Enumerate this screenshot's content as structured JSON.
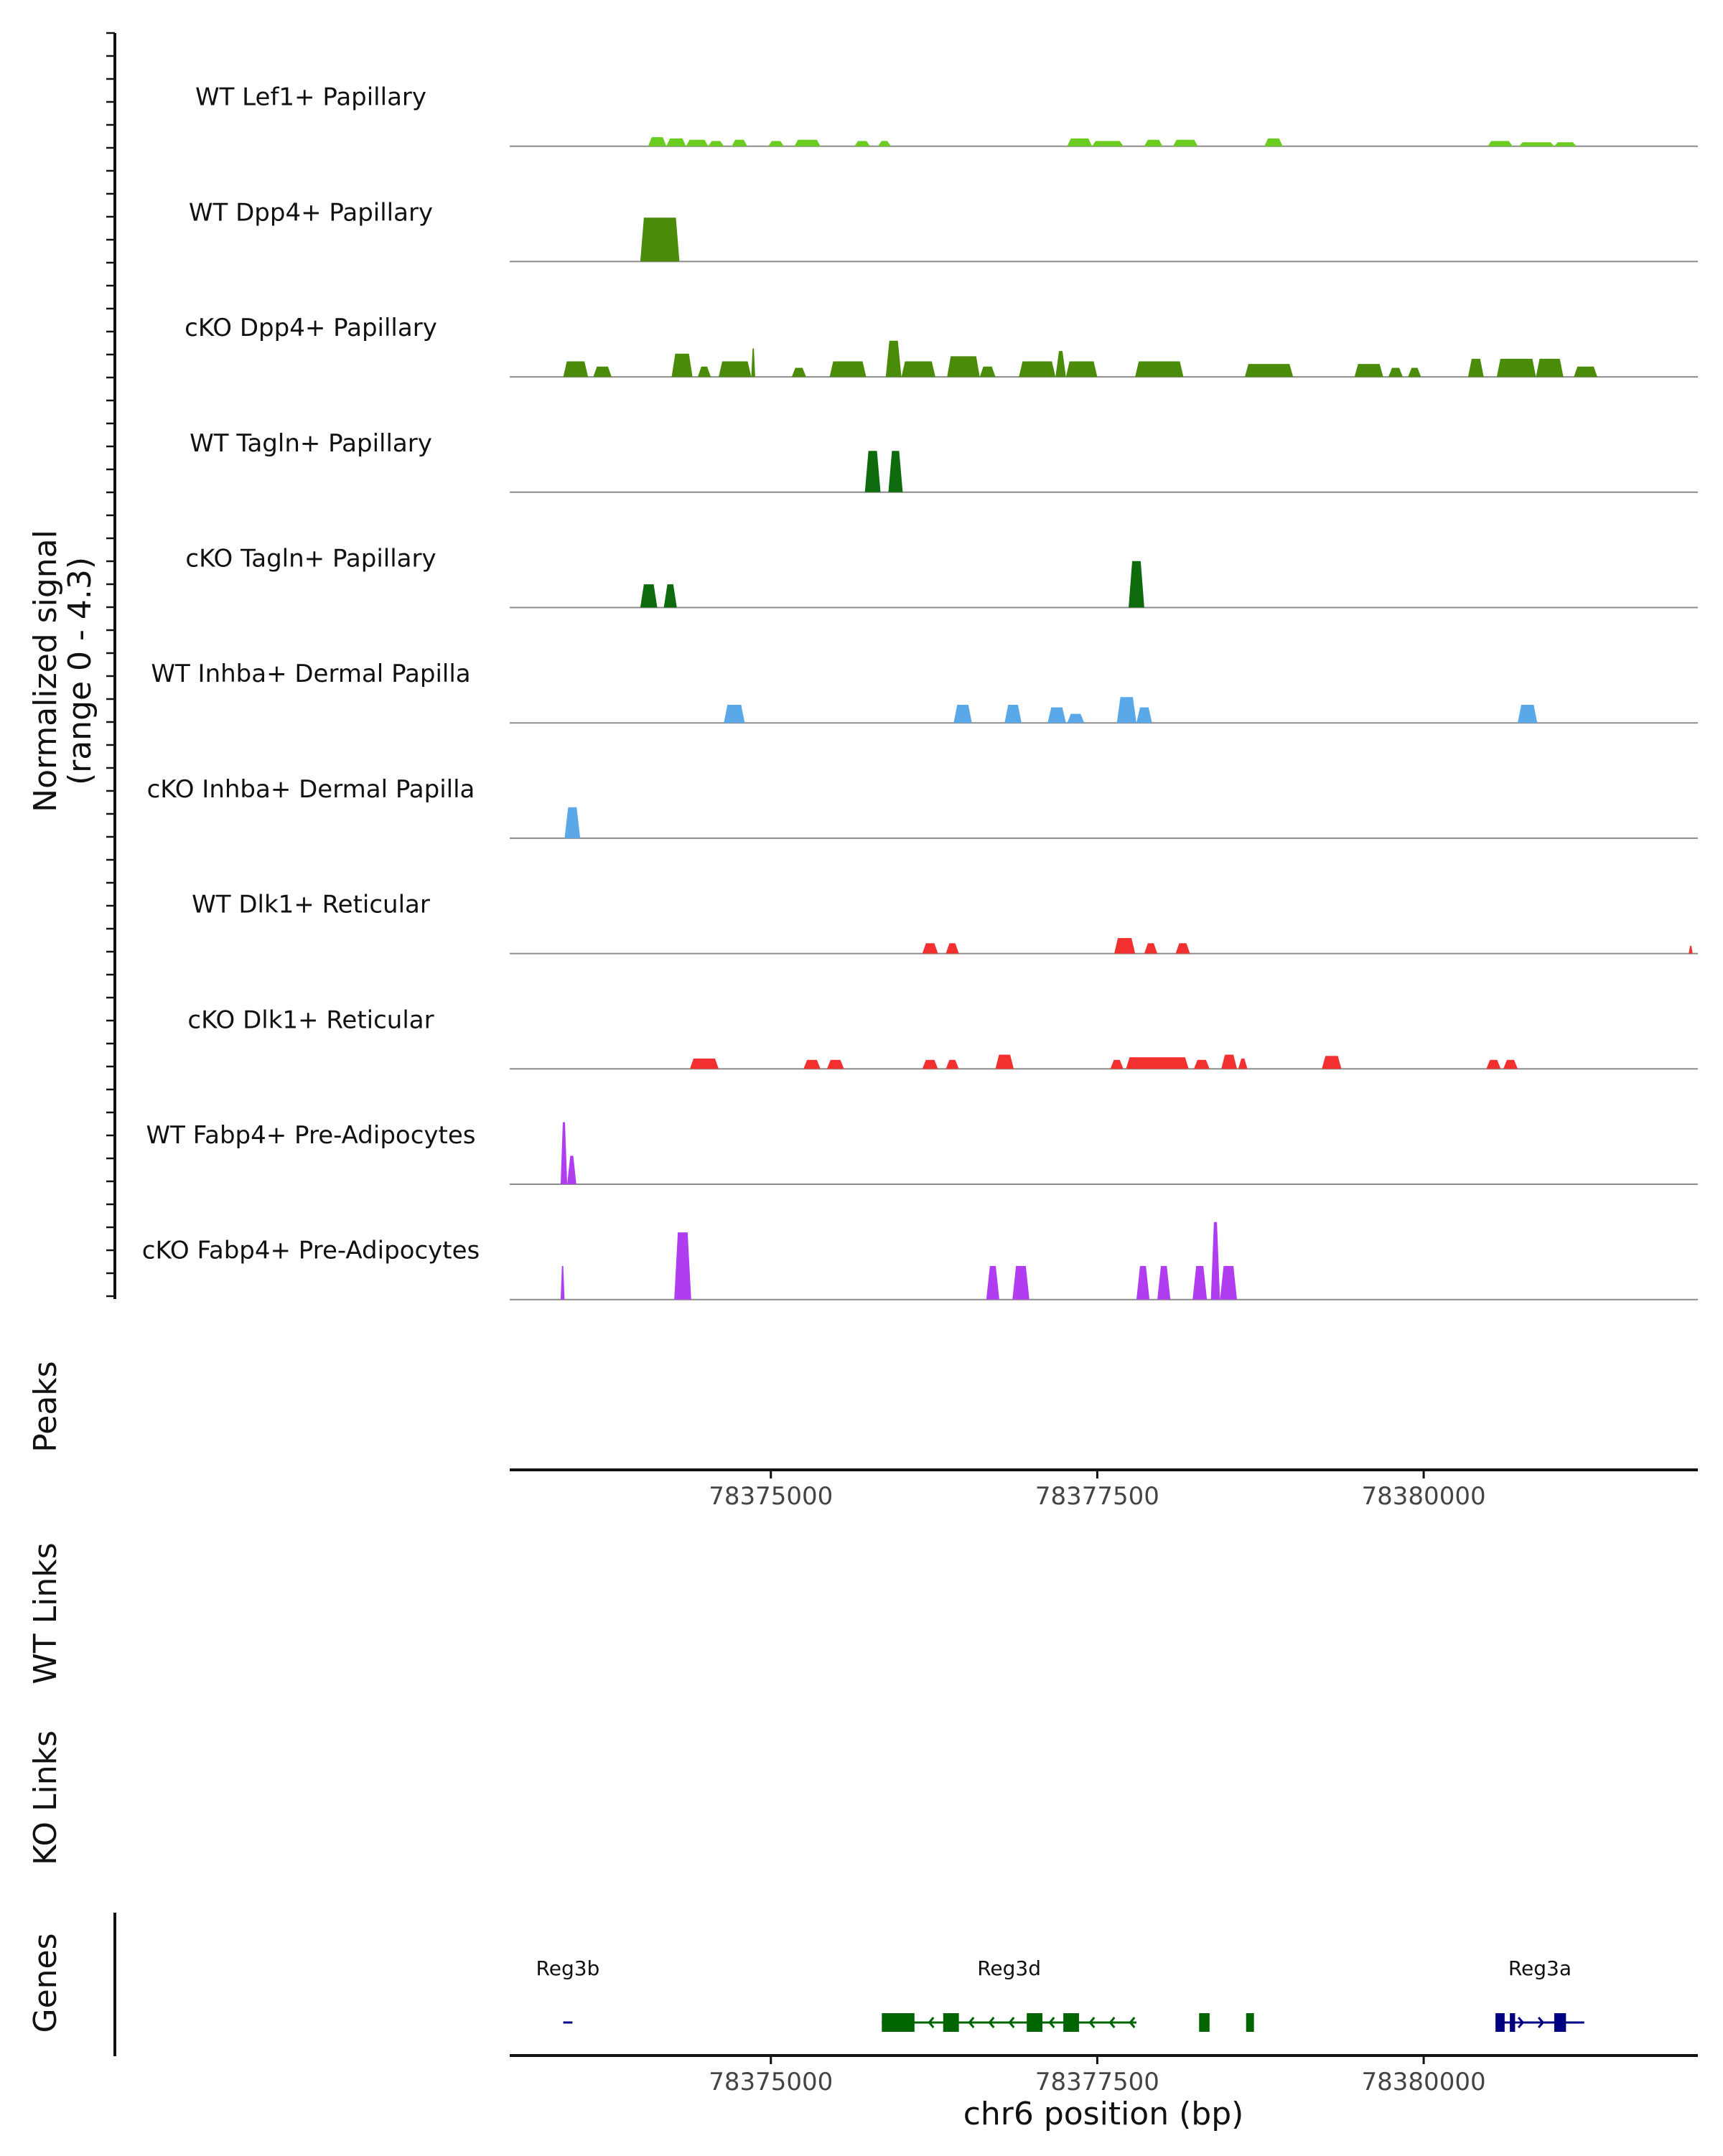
{
  "chart_data": {
    "type": "area",
    "chromosome": "chr6",
    "xlim": [
      78373000,
      78382100
    ],
    "coverage": {
      "ylabel": "Normalized signal",
      "ylabel_range": "(range 0 - 4.3)",
      "ylim": [
        0,
        4.3
      ],
      "tracks": [
        {
          "name": "WT Lef1+ Papillary",
          "color": "#6acc1f",
          "peaks": [
            [
              78374060,
              78374200,
              0.35
            ],
            [
              78374200,
              78374350,
              0.3
            ],
            [
              78374350,
              78374520,
              0.25
            ],
            [
              78374520,
              78374640,
              0.2
            ],
            [
              78374700,
              78374820,
              0.25
            ],
            [
              78374980,
              78375100,
              0.2
            ],
            [
              78375180,
              78375380,
              0.25
            ],
            [
              78375640,
              78375760,
              0.2
            ],
            [
              78375820,
              78375920,
              0.2
            ],
            [
              78377270,
              78377460,
              0.3
            ],
            [
              78377460,
              78377700,
              0.2
            ],
            [
              78377860,
              78378000,
              0.25
            ],
            [
              78378080,
              78378270,
              0.25
            ],
            [
              78378780,
              78378920,
              0.3
            ],
            [
              78380490,
              78380680,
              0.2
            ],
            [
              78380730,
              78381000,
              0.15
            ],
            [
              78381000,
              78381170,
              0.15
            ]
          ]
        },
        {
          "name": "WT Dpp4+ Papillary",
          "color": "#4a8c0a",
          "peaks": [
            [
              78374000,
              78374300,
              1.7
            ]
          ]
        },
        {
          "name": "cKO Dpp4+ Papillary",
          "color": "#4a8c0a",
          "peaks": [
            [
              78373410,
              78373600,
              0.6
            ],
            [
              78373640,
              78373780,
              0.4
            ],
            [
              78374240,
              78374400,
              0.9
            ],
            [
              78374440,
              78374540,
              0.4
            ],
            [
              78374600,
              78374850,
              0.6
            ],
            [
              78374850,
              78374880,
              1.1
            ],
            [
              78375160,
              78375270,
              0.35
            ],
            [
              78375450,
              78375730,
              0.6
            ],
            [
              78375880,
              78376000,
              1.4
            ],
            [
              78376000,
              78376260,
              0.6
            ],
            [
              78376350,
              78376600,
              0.8
            ],
            [
              78376600,
              78376720,
              0.4
            ],
            [
              78376900,
              78377180,
              0.6
            ],
            [
              78377180,
              78377260,
              1.0
            ],
            [
              78377260,
              78377500,
              0.6
            ],
            [
              78377790,
              78378160,
              0.6
            ],
            [
              78378630,
              78379000,
              0.5
            ],
            [
              78379470,
              78379690,
              0.5
            ],
            [
              78379730,
              78379840,
              0.35
            ],
            [
              78379880,
              78379980,
              0.35
            ],
            [
              78380340,
              78380460,
              0.7
            ],
            [
              78380560,
              78380860,
              0.7
            ],
            [
              78380860,
              78381070,
              0.7
            ],
            [
              78381150,
              78381330,
              0.4
            ]
          ]
        },
        {
          "name": "WT Tagln+ Papillary",
          "color": "#0d6b0d",
          "peaks": [
            [
              78375720,
              78375840,
              1.6
            ],
            [
              78375900,
              78376010,
              1.6
            ]
          ]
        },
        {
          "name": "cKO Tagln+ Papillary",
          "color": "#0d6b0d",
          "peaks": [
            [
              78374000,
              78374130,
              0.9
            ],
            [
              78374180,
              78374280,
              0.9
            ],
            [
              78377740,
              78377860,
              1.8
            ]
          ]
        },
        {
          "name": "WT Inhba+ Dermal Papilla",
          "color": "#5aa8e8",
          "peaks": [
            [
              78374640,
              78374800,
              0.7
            ],
            [
              78376400,
              78376540,
              0.7
            ],
            [
              78376790,
              78376920,
              0.7
            ],
            [
              78377120,
              78377260,
              0.6
            ],
            [
              78377270,
              78377400,
              0.35
            ],
            [
              78377650,
              78377800,
              1.0
            ],
            [
              78377800,
              78377920,
              0.6
            ],
            [
              78380720,
              78380870,
              0.7
            ]
          ]
        },
        {
          "name": "cKO Inhba+ Dermal Papilla",
          "color": "#5aa8e8",
          "peaks": [
            [
              78373420,
              78373540,
              1.2
            ]
          ]
        },
        {
          "name": "WT Dlk1+ Reticular",
          "color": "#f23030",
          "peaks": [
            [
              78376160,
              78376280,
              0.4
            ],
            [
              78376340,
              78376440,
              0.4
            ],
            [
              78377630,
              78377790,
              0.6
            ],
            [
              78377860,
              78377960,
              0.4
            ],
            [
              78378100,
              78378210,
              0.4
            ],
            [
              78382030,
              78382060,
              0.3
            ]
          ]
        },
        {
          "name": "cKO Dlk1+ Reticular",
          "color": "#f23030",
          "peaks": [
            [
              78374380,
              78374600,
              0.4
            ],
            [
              78375250,
              78375380,
              0.35
            ],
            [
              78375430,
              78375560,
              0.35
            ],
            [
              78376160,
              78376280,
              0.35
            ],
            [
              78376340,
              78376440,
              0.35
            ],
            [
              78376720,
              78376860,
              0.55
            ],
            [
              78377600,
              78377700,
              0.35
            ],
            [
              78377720,
              78378200,
              0.45
            ],
            [
              78378240,
              78378360,
              0.35
            ],
            [
              78378450,
              78378570,
              0.55
            ],
            [
              78378580,
              78378650,
              0.4
            ],
            [
              78379220,
              78379370,
              0.5
            ],
            [
              78380480,
              78380590,
              0.35
            ],
            [
              78380610,
              78380720,
              0.35
            ]
          ]
        },
        {
          "name": "WT Fabp4+ Pre-Adipocytes",
          "color": "#b03ef0",
          "peaks": [
            [
              78373390,
              78373440,
              2.4
            ],
            [
              78373440,
              78373510,
              1.1
            ]
          ]
        },
        {
          "name": "cKO Fabp4+ Pre-Adipocytes",
          "color": "#b03ef0",
          "peaks": [
            [
              78373390,
              78373420,
              1.3
            ],
            [
              78374260,
              78374390,
              2.6
            ],
            [
              78376650,
              78376750,
              1.3
            ],
            [
              78376850,
              78376980,
              1.3
            ],
            [
              78377800,
              78377900,
              1.3
            ],
            [
              78377960,
              78378060,
              1.3
            ],
            [
              78378230,
              78378340,
              1.3
            ],
            [
              78378370,
              78378440,
              3.0
            ],
            [
              78378440,
              78378570,
              1.3
            ]
          ]
        }
      ]
    },
    "peaks_track": {
      "label": "Peaks"
    },
    "wt_links": {
      "label": "WT Links"
    },
    "ko_links": {
      "label": "KO Links"
    },
    "genes_track": {
      "label": "Genes",
      "genes": [
        {
          "name": "Reg3b",
          "color": "#000080",
          "start": 78373410,
          "end": 78373480,
          "strand": "+",
          "exons": []
        },
        {
          "name": "Reg3d",
          "color": "#006400",
          "start": 78375850,
          "end": 78377800,
          "strand": "-",
          "exons": [
            [
              78375850,
              78376100
            ],
            [
              78376320,
              78376440
            ],
            [
              78376960,
              78377080
            ],
            [
              78377240,
              78377360
            ],
            [
              78378280,
              78378360
            ],
            [
              78378640,
              78378700
            ]
          ]
        },
        {
          "name": "Reg3a",
          "color": "#000080",
          "start": 78380550,
          "end": 78381230,
          "strand": "+",
          "exons": [
            [
              78380550,
              78380620
            ],
            [
              78380660,
              78380700
            ],
            [
              78381000,
              78381090
            ]
          ]
        }
      ]
    },
    "ticks": [
      78375000,
      78377500,
      78380000
    ],
    "xlabel": "chr6 position (bp)"
  }
}
